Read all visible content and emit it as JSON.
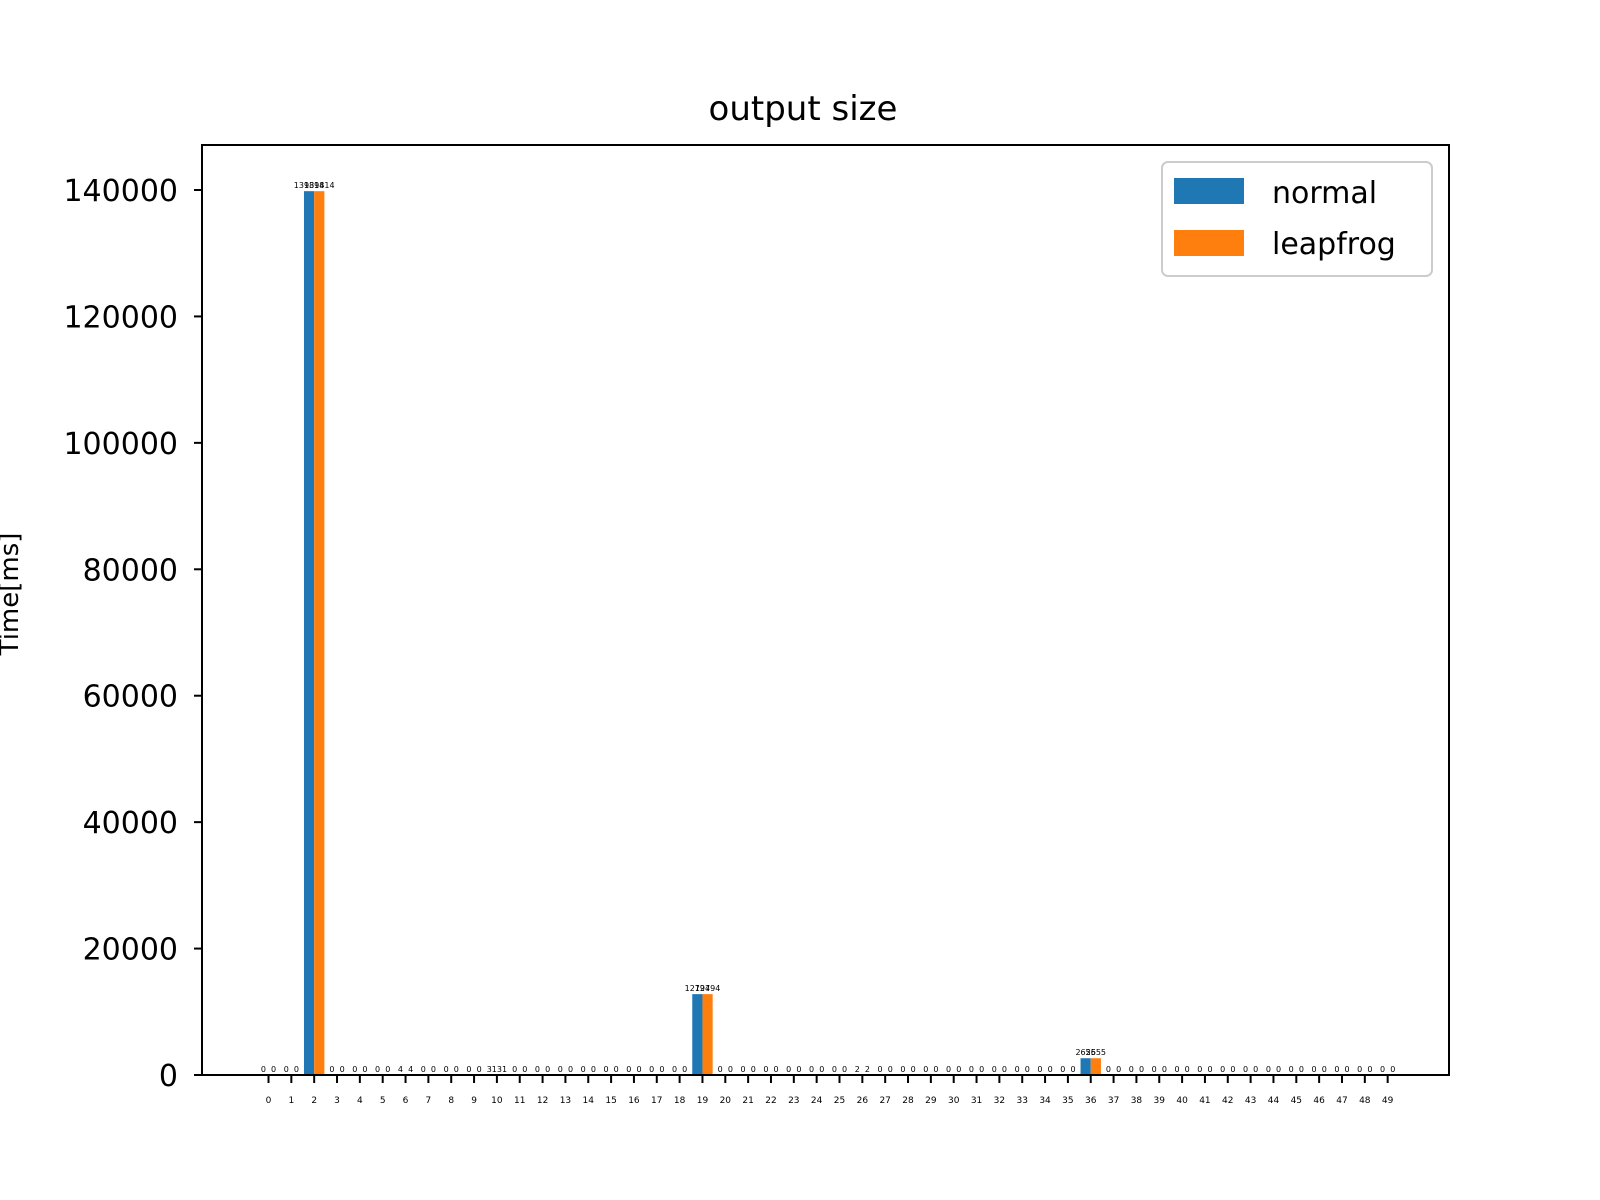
{
  "chart_data": {
    "type": "bar",
    "title": "output size",
    "xlabel": "",
    "ylabel": "Time[ms]",
    "ylim": [
      0,
      147000
    ],
    "yticks": [
      0,
      20000,
      40000,
      60000,
      80000,
      100000,
      120000,
      140000
    ],
    "categories": [
      "0",
      "1",
      "2",
      "3",
      "4",
      "5",
      "6",
      "7",
      "8",
      "9",
      "10",
      "11",
      "12",
      "13",
      "14",
      "15",
      "16",
      "17",
      "18",
      "19",
      "20",
      "21",
      "22",
      "23",
      "24",
      "25",
      "26",
      "27",
      "28",
      "29",
      "30",
      "31",
      "32",
      "33",
      "34",
      "35",
      "36",
      "37",
      "38",
      "39",
      "40",
      "41",
      "42",
      "43",
      "44",
      "45",
      "46",
      "47",
      "48",
      "49"
    ],
    "series": [
      {
        "name": "normal",
        "color": "#1f77b4",
        "values": [
          0,
          0,
          139814,
          0,
          0,
          0,
          4,
          0,
          0,
          0,
          31,
          0,
          0,
          0,
          0,
          0,
          0,
          0,
          0,
          12794,
          0,
          0,
          0,
          0,
          0,
          0,
          2,
          0,
          0,
          0,
          0,
          0,
          0,
          0,
          0,
          0,
          2655,
          0,
          0,
          0,
          0,
          0,
          0,
          0,
          0,
          0,
          0,
          0,
          0,
          0
        ]
      },
      {
        "name": "leapfrog",
        "color": "#ff7f0e",
        "values": [
          0,
          0,
          139814,
          0,
          0,
          0,
          4,
          0,
          0,
          0,
          31,
          0,
          0,
          0,
          0,
          0,
          0,
          0,
          0,
          12794,
          0,
          0,
          0,
          0,
          0,
          0,
          2,
          0,
          0,
          0,
          0,
          0,
          0,
          0,
          0,
          0,
          2655,
          0,
          0,
          0,
          0,
          0,
          0,
          0,
          0,
          0,
          0,
          0,
          0,
          0
        ]
      }
    ],
    "grid": false,
    "legend_position": "top-right"
  }
}
